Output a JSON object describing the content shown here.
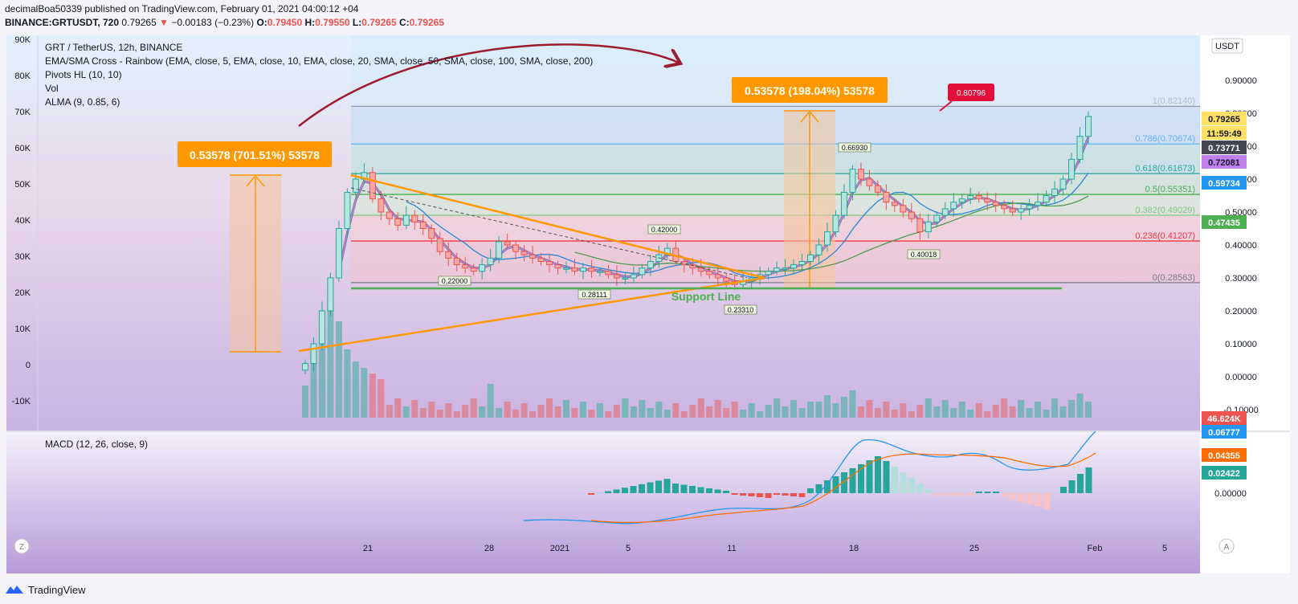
{
  "header": {
    "line1": "decimalBoa50339 published on TradingView.com, February 01, 2021 04:00:12 +04",
    "symbol": "BINANCE:GRTUSDT, 720",
    "last": "0.79265",
    "change": "−0.00183 (−0.23%)",
    "o_label": "O:",
    "o": "0.79450",
    "h_label": "H:",
    "h": "0.79550",
    "l_label": "L:",
    "l": "0.79265",
    "c_label": "C:",
    "c": "0.79265"
  },
  "legend": {
    "title": "GRT / TetherUS, 12h, BINANCE",
    "indicator1": "EMA/SMA Cross - Rainbow (EMA, close, 5, EMA, close, 10, EMA, close, 20, SMA, close, 50, SMA, close, 100, SMA, close, 200)",
    "indicator2": "Pivots HL (10, 10)",
    "indicator3": "Vol",
    "indicator4": "ALMA (9, 0.85, 6)"
  },
  "currency_button": "USDT",
  "macd_title": "MACD (12, 26, close, 9)",
  "footer": {
    "brand": "TradingView"
  },
  "bottom_buttons": {
    "left": "Z",
    "right": "A"
  },
  "annotations": {
    "range_box_1": "0.53578 (701.51%) 53578",
    "range_box_2": "0.53578 (198.04%) 53578",
    "red_price_tag": "0.80796",
    "support_line": "Support Line",
    "pivot_labels": [
      "0.66930",
      "0.42000",
      "0.22000",
      "0.28111",
      "0.23310",
      "0.40018"
    ]
  },
  "price_tags": {
    "current": "0.79265",
    "countdown": "11:59:49",
    "tag1": "0.73771",
    "tag2": "0.72081",
    "tag3": "0.59734",
    "tag4": "0.47435",
    "tag5": "46.624K",
    "macd1": "0.06777",
    "macd2": "0.04355",
    "macd3": "0.02422"
  },
  "colors": {
    "up": "#26a69a",
    "down": "#ef5350",
    "fib_gray": "#787b86",
    "fib_786": "#64b5f6",
    "fib_618": "#26a69a",
    "fib_5": "#4caf50",
    "fib_382": "#81c784",
    "fib_236": "#f23645",
    "orange": "#ff9800",
    "wine": "#9c1b2d"
  },
  "chart_data": {
    "type": "candlestick",
    "title": "GRT / TetherUS, 12h, BINANCE",
    "right_axis": {
      "ticks": [
        "0.90000",
        "0.80000",
        "0.70000",
        "0.60000",
        "0.50000",
        "0.40000",
        "0.30000",
        "0.20000",
        "0.10000",
        "0.00000",
        "-0.10000"
      ],
      "range": [
        -0.11,
        1.0
      ]
    },
    "left_axis": {
      "ticks": [
        "90K",
        "80K",
        "70K",
        "60K",
        "50K",
        "40K",
        "30K",
        "20K",
        "10K",
        "0",
        "-10K"
      ]
    },
    "x_ticks": [
      "21",
      "28",
      "2021",
      "5",
      "11",
      "18",
      "25",
      "Feb",
      "5"
    ],
    "fibonacci": [
      {
        "level": "1",
        "price": 0.8214,
        "label": "1(0.82140)"
      },
      {
        "level": "0.786",
        "price": 0.70674,
        "label": "0.786(0.70674)"
      },
      {
        "level": "0.618",
        "price": 0.61673,
        "label": "0.618(0.61673)"
      },
      {
        "level": "0.5",
        "price": 0.55351,
        "label": "0.5(0.55351)"
      },
      {
        "level": "0.382",
        "price": 0.49029,
        "label": "0.382(0.49029)"
      },
      {
        "level": "0.236",
        "price": 0.41207,
        "label": "0.236(0.41207)"
      },
      {
        "level": "0",
        "price": 0.28563,
        "label": "0(0.28563)"
      }
    ],
    "candles_close": [
      0.04,
      0.1,
      0.2,
      0.3,
      0.45,
      0.56,
      0.6,
      0.62,
      0.54,
      0.5,
      0.48,
      0.46,
      0.49,
      0.47,
      0.45,
      0.42,
      0.38,
      0.36,
      0.34,
      0.33,
      0.32,
      0.34,
      0.36,
      0.41,
      0.4,
      0.38,
      0.37,
      0.36,
      0.35,
      0.34,
      0.33,
      0.33,
      0.32,
      0.33,
      0.32,
      0.32,
      0.31,
      0.3,
      0.3,
      0.31,
      0.33,
      0.35,
      0.37,
      0.39,
      0.35,
      0.34,
      0.33,
      0.32,
      0.31,
      0.3,
      0.29,
      0.28,
      0.29,
      0.3,
      0.31,
      0.32,
      0.33,
      0.33,
      0.34,
      0.35,
      0.37,
      0.4,
      0.44,
      0.49,
      0.56,
      0.63,
      0.6,
      0.58,
      0.56,
      0.53,
      0.52,
      0.5,
      0.48,
      0.44,
      0.47,
      0.49,
      0.51,
      0.53,
      0.54,
      0.55,
      0.54,
      0.53,
      0.52,
      0.51,
      0.5,
      0.51,
      0.52,
      0.53,
      0.55,
      0.57,
      0.6,
      0.66,
      0.73,
      0.79
    ],
    "macd": {
      "macd_last": 0.06777,
      "signal_last": 0.04355,
      "hist_last": 0.02422
    }
  }
}
